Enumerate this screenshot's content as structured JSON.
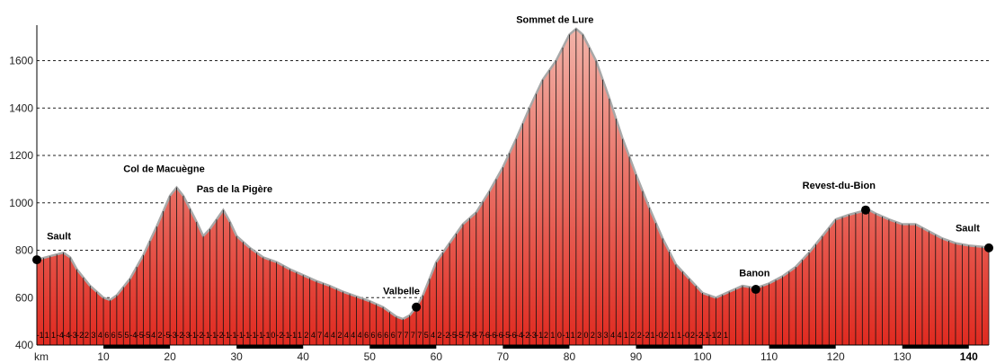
{
  "chart_data": {
    "type": "area",
    "xlabel": "km",
    "ylim": [
      400,
      1750
    ],
    "xlim": [
      0,
      143
    ],
    "y_ticks": [
      400,
      600,
      800,
      1000,
      1200,
      1400,
      1600
    ],
    "x_ticks": [
      "km",
      "10",
      "20",
      "30",
      "40",
      "50",
      "60",
      "70",
      "80",
      "90",
      "100",
      "110",
      "120",
      "130",
      "140"
    ],
    "x_tick_values": [
      0,
      10,
      20,
      30,
      40,
      50,
      60,
      70,
      80,
      90,
      100,
      110,
      120,
      130,
      140
    ],
    "grid": "horizontal-dashed",
    "fill_color_top": "#f2b3a8",
    "fill_color_bottom": "#e02a20",
    "line_color": "#a8a8a8",
    "profile": {
      "x": [
        0,
        2,
        4,
        5,
        6,
        8,
        10,
        11,
        12,
        14,
        16,
        18,
        20,
        21,
        22,
        24,
        25,
        26,
        28,
        29,
        30,
        32,
        34,
        36,
        38,
        40,
        42,
        44,
        46,
        48,
        50,
        52,
        54,
        55,
        56,
        57,
        58,
        60,
        62,
        64,
        66,
        68,
        70,
        72,
        74,
        76,
        78,
        80,
        81,
        82,
        84,
        86,
        88,
        90,
        92,
        94,
        96,
        98,
        100,
        102,
        104,
        106,
        108,
        110,
        112,
        114,
        116,
        118,
        120,
        122,
        124,
        125,
        126,
        128,
        130,
        132,
        134,
        136,
        138,
        140,
        142,
        143
      ],
      "y": [
        760,
        775,
        790,
        770,
        720,
        650,
        600,
        590,
        610,
        680,
        780,
        900,
        1030,
        1065,
        1030,
        920,
        860,
        890,
        970,
        920,
        860,
        810,
        770,
        750,
        720,
        695,
        670,
        650,
        625,
        605,
        585,
        560,
        520,
        510,
        525,
        560,
        610,
        750,
        830,
        910,
        960,
        1050,
        1150,
        1270,
        1400,
        1520,
        1600,
        1710,
        1735,
        1710,
        1600,
        1440,
        1270,
        1120,
        980,
        850,
        740,
        680,
        620,
        600,
        625,
        650,
        640,
        660,
        690,
        730,
        790,
        860,
        930,
        950,
        965,
        970,
        955,
        930,
        910,
        910,
        880,
        850,
        830,
        820,
        815,
        810
      ]
    },
    "points": [
      {
        "name": "Sault",
        "x": 0,
        "y": 760
      },
      {
        "name": "Valbelle",
        "x": 57,
        "y": 560
      },
      {
        "name": "Banon",
        "x": 108,
        "y": 635
      },
      {
        "name": "Revest-du-Bion",
        "x": 124.5,
        "y": 970
      },
      {
        "name": "Sault",
        "x": 143,
        "y": 810
      }
    ],
    "labels": [
      {
        "text": "Sault",
        "x": 1.5,
        "y": 845
      },
      {
        "text": "Col de Macuègne",
        "x": 13,
        "y": 1130
      },
      {
        "text": "Pas de la Pigère",
        "x": 24,
        "y": 1045
      },
      {
        "text": "Valbelle",
        "x": 52,
        "y": 615
      },
      {
        "text": "Sommet de Lure",
        "x": 72,
        "y": 1760
      },
      {
        "text": "Banon",
        "x": 105.5,
        "y": 690
      },
      {
        "text": "Revest-du-Bion",
        "x": 115,
        "y": 1060
      },
      {
        "text": "Sault",
        "x": 138,
        "y": 880
      }
    ],
    "gradients": [
      "-1",
      "1",
      "1",
      "-4",
      "-4",
      "-3",
      "-2",
      "2",
      "3",
      "4",
      "6",
      "6",
      "5",
      "5",
      "-4",
      "-5",
      "-5",
      "4",
      "2",
      "-5",
      "-3",
      "-2",
      "-3",
      "-1",
      "-2",
      "-1",
      "-1",
      "-2",
      "-1",
      "-1",
      "-1",
      "-1",
      "-1",
      "-1",
      "-1",
      "0",
      "-2",
      "-1",
      "-1",
      "1",
      "2",
      "4",
      "7",
      "4",
      "4",
      "2",
      "4",
      "4",
      "4",
      "6",
      "6",
      "6",
      "6",
      "6",
      "7",
      "7",
      "7",
      "7",
      "5",
      "4",
      "2",
      "-2",
      "-5",
      "-5",
      "-7",
      "-8",
      "-7",
      "-6",
      "-6",
      "-6",
      "-5",
      "-6",
      "-4",
      "-2",
      "-3",
      "-1",
      "2",
      "1",
      "0",
      "-1",
      "1",
      "2",
      "0",
      "2",
      "3",
      "3",
      "4",
      "4",
      "1",
      "2",
      "2",
      "-2",
      "1",
      "-0",
      "2",
      "1",
      "1",
      "-0",
      "2",
      "-2",
      "-1",
      "-1",
      "2",
      "1"
    ]
  }
}
